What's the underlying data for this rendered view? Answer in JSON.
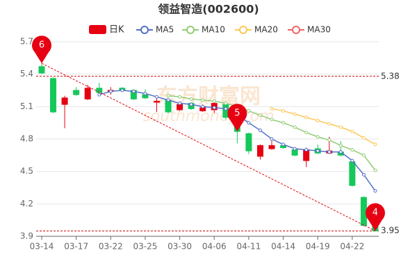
{
  "chart_data": {
    "type": "candlestick",
    "title": "领益智造(002600)",
    "watermark": [
      "东方财富网",
      "southmoney.com"
    ],
    "categories": [
      "03-14",
      null,
      null,
      "03-17",
      null,
      null,
      "03-22",
      null,
      null,
      "03-25",
      null,
      null,
      "03-30",
      null,
      null,
      "04-06",
      null,
      null,
      "04-11",
      null,
      null,
      "04-14",
      null,
      null,
      "04-19",
      null,
      null,
      "04-22",
      null,
      null
    ],
    "ohlc": {
      "name": "日K",
      "up_color": "#e60012",
      "down_color": "#14c85a",
      "open": [
        5.47,
        5.36,
        5.12,
        5.25,
        5.17,
        5.27,
        5.24,
        5.27,
        5.25,
        5.21,
        5.14,
        5.16,
        5.07,
        5.13,
        5.06,
        5.07,
        5.12,
        5.0,
        4.85,
        4.64,
        4.71,
        4.74,
        4.7,
        4.6,
        4.71,
        4.67,
        4.68,
        4.59,
        4.26,
        4.01
      ],
      "close": [
        5.41,
        5.05,
        5.18,
        5.21,
        5.27,
        5.23,
        5.25,
        5.25,
        5.17,
        5.18,
        5.15,
        5.05,
        5.12,
        5.08,
        5.09,
        5.13,
        5.0,
        4.87,
        4.69,
        4.74,
        4.74,
        4.72,
        4.65,
        4.7,
        4.67,
        4.69,
        4.65,
        4.37,
        4.0,
        3.95
      ],
      "high": [
        5.5,
        5.37,
        5.2,
        5.28,
        5.3,
        5.32,
        5.28,
        5.28,
        5.26,
        5.26,
        5.2,
        5.17,
        5.14,
        5.14,
        5.12,
        5.14,
        5.14,
        5.02,
        4.86,
        4.75,
        4.79,
        4.76,
        4.72,
        4.72,
        4.75,
        4.82,
        4.78,
        4.6,
        4.27,
        4.02
      ],
      "low": [
        5.4,
        5.04,
        4.9,
        5.2,
        5.16,
        5.22,
        5.21,
        5.24,
        5.16,
        5.17,
        5.05,
        5.04,
        5.06,
        5.07,
        5.05,
        5.04,
        4.98,
        4.76,
        4.66,
        4.61,
        4.7,
        4.71,
        4.64,
        4.54,
        4.66,
        4.66,
        4.64,
        4.36,
        3.99,
        3.95
      ]
    },
    "series": [
      {
        "name": "MA5",
        "color": "#5470c6",
        "values": [
          null,
          null,
          null,
          null,
          null,
          5.21,
          5.24,
          5.25,
          5.24,
          5.22,
          5.19,
          5.16,
          5.13,
          5.12,
          5.1,
          5.09,
          5.08,
          5.02,
          4.95,
          4.88,
          4.8,
          4.75,
          4.71,
          4.7,
          4.69,
          4.68,
          4.68,
          4.6,
          4.47,
          4.32
        ]
      },
      {
        "name": "MA10",
        "color": "#91cc75",
        "values": [
          null,
          null,
          null,
          null,
          null,
          null,
          null,
          null,
          null,
          null,
          null,
          5.2,
          5.19,
          5.17,
          5.16,
          5.15,
          5.13,
          5.1,
          5.06,
          5.02,
          4.98,
          4.95,
          4.91,
          4.86,
          4.82,
          4.79,
          4.74,
          4.7,
          4.65,
          4.51
        ]
      },
      {
        "name": "MA20",
        "color": "#fac858",
        "values": [
          null,
          null,
          null,
          null,
          null,
          null,
          null,
          null,
          null,
          null,
          null,
          null,
          null,
          null,
          null,
          null,
          null,
          null,
          null,
          null,
          5.08,
          5.06,
          5.03,
          5.0,
          4.97,
          4.94,
          4.91,
          4.87,
          4.81,
          4.75
        ]
      },
      {
        "name": "MA30",
        "color": "#ee6666",
        "values": [
          null,
          null,
          null,
          null,
          null,
          null,
          null,
          null,
          null,
          null,
          null,
          null,
          null,
          null,
          null,
          null,
          null,
          null,
          null,
          null,
          null,
          null,
          null,
          null,
          null,
          null,
          null,
          null,
          null,
          null
        ]
      }
    ],
    "markers": [
      {
        "label": "6",
        "index": 0,
        "value": 5.5
      },
      {
        "label": "5",
        "index": 17,
        "value": 4.87
      },
      {
        "label": "4",
        "index": 29,
        "value": 3.95
      }
    ],
    "hlines": [
      5.38,
      3.95
    ],
    "ylim": [
      3.9,
      5.7
    ],
    "yticks": [
      3.9,
      4.2,
      4.5,
      4.8,
      5.1,
      5.4,
      5.7
    ],
    "grid": true
  }
}
